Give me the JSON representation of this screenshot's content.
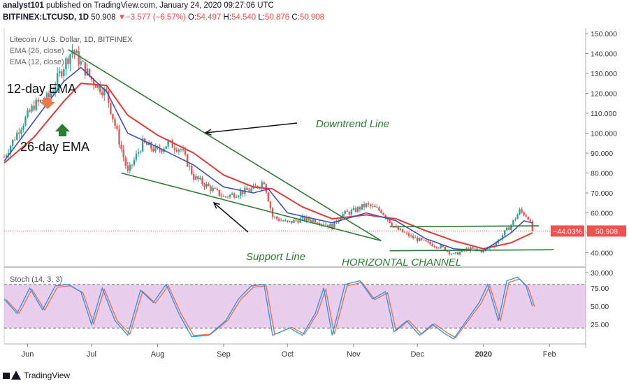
{
  "header": {
    "user": "analyst101",
    "published": "published on TradingView.com, January 24, 2020 09:27:06 UTC",
    "symbol": "BITFINEX:LTCUSD, 1D",
    "last": "50.908",
    "change_arrow": "▼",
    "change": "−3.577 (−6.57%)",
    "open_label": "O:",
    "open": "54.497",
    "high_label": "H:",
    "high": "54.540",
    "low_label": "L:",
    "low": "50.876",
    "close_label": "C:",
    "close": "50.908"
  },
  "panel": {
    "title": "Litecoin / U.S. Dollar, 1D, BITFINEX",
    "ema26_legend": "EMA (26, close)",
    "ema12_legend": "EMA (12, close)",
    "stoch_legend": "Stoch (14, 3, 3)"
  },
  "annotations": {
    "ema12": "12-day EMA",
    "ema26": "26-day EMA",
    "downtrend": "Downtrend Line",
    "support": "Support Line",
    "channel": "HORIZONTAL CHANNEL"
  },
  "price_badge": {
    "pct": "−44.03%",
    "price": "50.908"
  },
  "footer": {
    "brand": "TradingView"
  },
  "colors": {
    "up": "#26a69a",
    "down": "#ef5350",
    "ema12": "#3f51b5",
    "ema26": "#e53935",
    "trendline": "#2e7d32",
    "stoch_k": "#2196f3",
    "stoch_d": "#ef6c45",
    "stoch_band": "#ce93d8"
  },
  "chart_data": {
    "type": "candlestick",
    "symbol": "LTCUSD",
    "timeframe": "1D",
    "y_ticks": [
      "150.000",
      "140.000",
      "130.000",
      "120.000",
      "110.000",
      "100.000",
      "90.000",
      "80.000",
      "70.000",
      "60.000",
      "50.000",
      "40.000",
      "30.000"
    ],
    "ylim": [
      30,
      150
    ],
    "x_ticks": [
      "Jun",
      "Jul",
      "Aug",
      "Sep",
      "Oct",
      "Nov",
      "Dec",
      "2020",
      "Feb"
    ],
    "x_start": "2019-05-21",
    "x_end": "2020-02-18",
    "close_path": [
      [
        "2019-05-21",
        88
      ],
      [
        "2019-05-28",
        102
      ],
      [
        "2019-06-04",
        114
      ],
      [
        "2019-06-11",
        118
      ],
      [
        "2019-06-18",
        134
      ],
      [
        "2019-06-22",
        142
      ],
      [
        "2019-06-26",
        135
      ],
      [
        "2019-07-01",
        127
      ],
      [
        "2019-07-08",
        120
      ],
      [
        "2019-07-15",
        92
      ],
      [
        "2019-07-18",
        80
      ],
      [
        "2019-07-25",
        95
      ],
      [
        "2019-08-01",
        91
      ],
      [
        "2019-08-06",
        95
      ],
      [
        "2019-08-12",
        92
      ],
      [
        "2019-08-18",
        78
      ],
      [
        "2019-08-25",
        73
      ],
      [
        "2019-09-01",
        68
      ],
      [
        "2019-09-08",
        70
      ],
      [
        "2019-09-15",
        72
      ],
      [
        "2019-09-20",
        76
      ],
      [
        "2019-09-24",
        58
      ],
      [
        "2019-10-01",
        55
      ],
      [
        "2019-10-08",
        57
      ],
      [
        "2019-10-15",
        56
      ],
      [
        "2019-10-22",
        53
      ],
      [
        "2019-10-26",
        59
      ],
      [
        "2019-11-01",
        61
      ],
      [
        "2019-11-07",
        64
      ],
      [
        "2019-11-14",
        61
      ],
      [
        "2019-11-21",
        52
      ],
      [
        "2019-11-28",
        48
      ],
      [
        "2019-12-05",
        45
      ],
      [
        "2019-12-12",
        43
      ],
      [
        "2019-12-18",
        39
      ],
      [
        "2019-12-25",
        42
      ],
      [
        "2020-01-01",
        41
      ],
      [
        "2020-01-07",
        45
      ],
      [
        "2020-01-14",
        54
      ],
      [
        "2020-01-18",
        61
      ],
      [
        "2020-01-22",
        58
      ],
      [
        "2020-01-24",
        50.9
      ]
    ],
    "ema12_path": [
      [
        "2019-05-21",
        86
      ],
      [
        "2019-06-04",
        106
      ],
      [
        "2019-06-18",
        126
      ],
      [
        "2019-06-26",
        133
      ],
      [
        "2019-07-08",
        121
      ],
      [
        "2019-07-18",
        100
      ],
      [
        "2019-08-01",
        93
      ],
      [
        "2019-08-18",
        84
      ],
      [
        "2019-09-01",
        73
      ],
      [
        "2019-09-15",
        70
      ],
      [
        "2019-09-22",
        72
      ],
      [
        "2019-10-01",
        60
      ],
      [
        "2019-10-22",
        55
      ],
      [
        "2019-11-07",
        60
      ],
      [
        "2019-11-21",
        56
      ],
      [
        "2019-12-05",
        47
      ],
      [
        "2019-12-18",
        42
      ],
      [
        "2020-01-01",
        41
      ],
      [
        "2020-01-14",
        50
      ],
      [
        "2020-01-20",
        56
      ],
      [
        "2020-01-24",
        55
      ]
    ],
    "ema26_path": [
      [
        "2019-05-21",
        85
      ],
      [
        "2019-06-04",
        98
      ],
      [
        "2019-06-18",
        116
      ],
      [
        "2019-06-26",
        125
      ],
      [
        "2019-07-08",
        124
      ],
      [
        "2019-07-18",
        109
      ],
      [
        "2019-08-01",
        99
      ],
      [
        "2019-08-18",
        90
      ],
      [
        "2019-09-01",
        79
      ],
      [
        "2019-09-15",
        73
      ],
      [
        "2019-09-24",
        72
      ],
      [
        "2019-10-08",
        63
      ],
      [
        "2019-10-22",
        57
      ],
      [
        "2019-11-07",
        59
      ],
      [
        "2019-11-21",
        57
      ],
      [
        "2019-12-05",
        51
      ],
      [
        "2019-12-18",
        46
      ],
      [
        "2020-01-01",
        42
      ],
      [
        "2020-01-14",
        45
      ],
      [
        "2020-01-24",
        50
      ]
    ],
    "stoch": {
      "levels": [
        80,
        20
      ],
      "y_ticks": [
        "75.00",
        "50.00",
        "25.00"
      ],
      "ylim": [
        0,
        100
      ],
      "k_path": [
        [
          "2019-05-21",
          60
        ],
        [
          "2019-05-27",
          40
        ],
        [
          "2019-06-02",
          75
        ],
        [
          "2019-06-08",
          45
        ],
        [
          "2019-06-14",
          78
        ],
        [
          "2019-06-20",
          80
        ],
        [
          "2019-06-26",
          70
        ],
        [
          "2019-07-01",
          25
        ],
        [
          "2019-07-06",
          75
        ],
        [
          "2019-07-12",
          30
        ],
        [
          "2019-07-18",
          10
        ],
        [
          "2019-07-24",
          72
        ],
        [
          "2019-07-30",
          55
        ],
        [
          "2019-08-05",
          80
        ],
        [
          "2019-08-11",
          40
        ],
        [
          "2019-08-17",
          8
        ],
        [
          "2019-08-25",
          10
        ],
        [
          "2019-09-02",
          30
        ],
        [
          "2019-09-08",
          60
        ],
        [
          "2019-09-14",
          78
        ],
        [
          "2019-09-20",
          80
        ],
        [
          "2019-09-24",
          10
        ],
        [
          "2019-10-02",
          20
        ],
        [
          "2019-10-08",
          10
        ],
        [
          "2019-10-14",
          40
        ],
        [
          "2019-10-18",
          75
        ],
        [
          "2019-10-22",
          10
        ],
        [
          "2019-10-28",
          80
        ],
        [
          "2019-11-04",
          85
        ],
        [
          "2019-11-10",
          60
        ],
        [
          "2019-11-16",
          70
        ],
        [
          "2019-11-20",
          15
        ],
        [
          "2019-11-26",
          30
        ],
        [
          "2019-12-02",
          10
        ],
        [
          "2019-12-08",
          25
        ],
        [
          "2019-12-14",
          12
        ],
        [
          "2019-12-18",
          5
        ],
        [
          "2019-12-24",
          30
        ],
        [
          "2019-12-30",
          55
        ],
        [
          "2020-01-03",
          80
        ],
        [
          "2020-01-08",
          30
        ],
        [
          "2020-01-12",
          85
        ],
        [
          "2020-01-17",
          90
        ],
        [
          "2020-01-21",
          78
        ],
        [
          "2020-01-24",
          50
        ]
      ]
    }
  }
}
